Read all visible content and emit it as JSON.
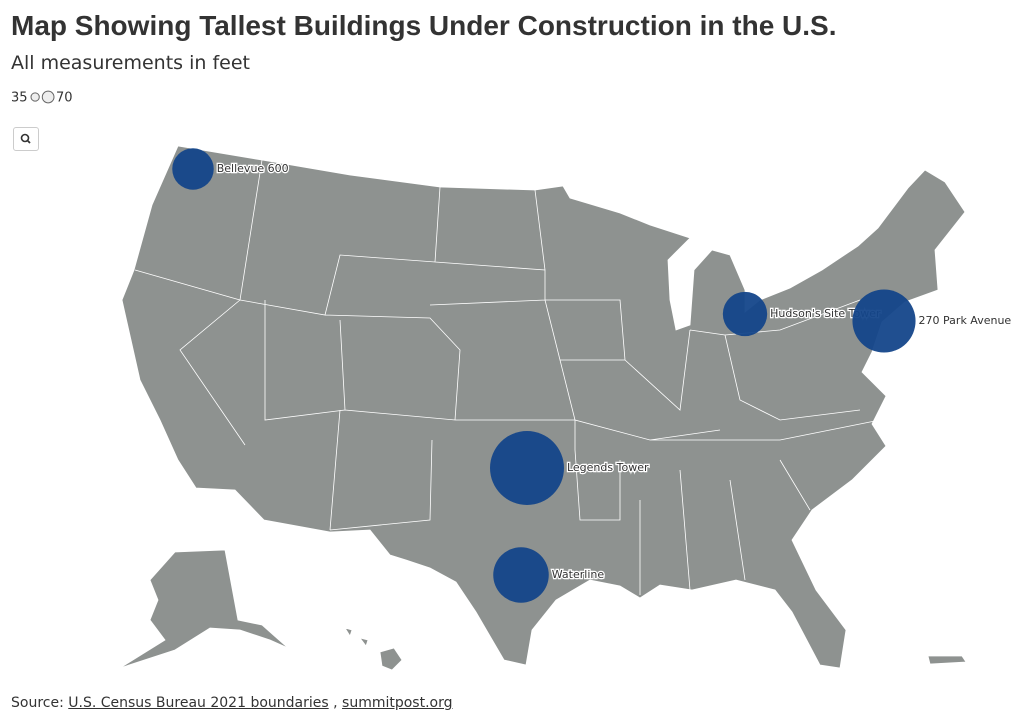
{
  "header": {
    "title": "Map Showing Tallest Buildings Under Construction in the U.S.",
    "subtitle": "All measurements in feet"
  },
  "chart_data": {
    "type": "bubble-map",
    "categories": [
      "Bellevue 600",
      "Hudson's Site Tower",
      "270 Park Avenue",
      "Legends Tower",
      "Waterline"
    ],
    "values": [
      600,
      685,
      1388,
      1907,
      1074
    ],
    "color": "#14468a",
    "size_legend": [
      35,
      70
    ]
  },
  "source": {
    "label": "Source:",
    "links": [
      "U.S. Census Bureau 2021 boundaries",
      "summitpost.org"
    ],
    "separator": ","
  }
}
